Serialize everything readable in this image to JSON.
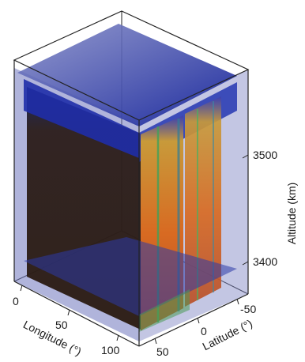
{
  "chart_data": {
    "type": "volume",
    "axes": {
      "longitude": {
        "label": "Longitude (°)",
        "ticks": [
          "0",
          "50",
          "100"
        ],
        "range": [
          0,
          120
        ]
      },
      "latitude": {
        "label": "Latitude (°)",
        "ticks": [
          "50",
          "0",
          "-50"
        ],
        "range": [
          60,
          -60
        ]
      },
      "altitude": {
        "label": "Altitude (km)",
        "ticks": [
          "3400",
          "3500"
        ],
        "range": [
          3360,
          3600
        ]
      }
    },
    "colors": {
      "upper_layer": "#1a2a9a",
      "body_shadow": "#2a1810",
      "warm_slab": "#d2671f",
      "edge_glow": "#44a85a",
      "translucent_face": "#8a92c8"
    }
  }
}
